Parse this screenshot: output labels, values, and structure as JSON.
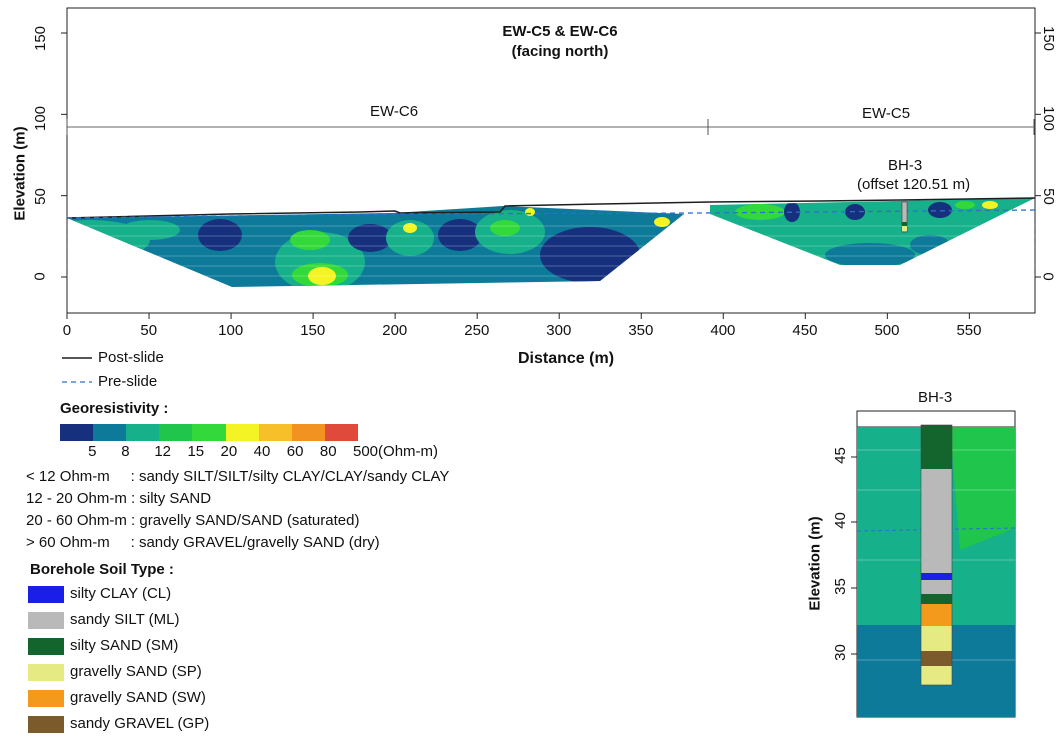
{
  "main_chart": {
    "title_line1": "EW-C5 & EW-C6",
    "title_line2": "(facing north)",
    "xlabel": "Distance (m)",
    "ylabel": "Elevation (m)",
    "section_labels": [
      "EW-C6",
      "EW-C5"
    ],
    "borehole_label": "BH-3",
    "borehole_offset": "(offset 120.51 m)",
    "x_ticks": [
      "0",
      "50",
      "100",
      "150",
      "200",
      "250",
      "300",
      "350",
      "400",
      "450",
      "500",
      "550"
    ],
    "y_ticks": [
      "0",
      "50",
      "100",
      "150"
    ]
  },
  "legend": {
    "post_slide": "Post-slide",
    "pre_slide": "Pre-slide",
    "georesistivity_title": "Georesistivity :",
    "scale_labels": [
      "5",
      "8",
      "12",
      "15",
      "20",
      "40",
      "60",
      "80",
      "500(Ohm-m)"
    ],
    "scale_colors": [
      "#16307e",
      "#0d7a99",
      "#16b08a",
      "#1fc64b",
      "#33d83a",
      "#f4f425",
      "#f7bf29",
      "#f29220",
      "#e04a3b"
    ],
    "interpretations": [
      "< 12 Ohm-m     : sandy SILT/SILT/silty CLAY/CLAY/sandy CLAY",
      "12 - 20 Ohm-m : silty SAND",
      "20 - 60 Ohm-m : gravelly SAND/SAND (saturated)",
      "> 60 Ohm-m     : sandy GRAVEL/gravelly SAND (dry)"
    ],
    "soil_title": "Borehole Soil Type :",
    "soil_types": [
      {
        "label": "silty CLAY (CL)",
        "color": "#1b1ee8"
      },
      {
        "label": "sandy SILT (ML)",
        "color": "#b9b9b9"
      },
      {
        "label": "silty SAND (SM)",
        "color": "#13652d"
      },
      {
        "label": "gravelly SAND (SP)",
        "color": "#e6ea83"
      },
      {
        "label": "gravelly SAND (SW)",
        "color": "#f39a1d"
      },
      {
        "label": "sandy GRAVEL (GP)",
        "color": "#7b5a2b"
      }
    ]
  },
  "inset": {
    "title": "BH-3",
    "ylabel": "Elevation (m)",
    "y_ticks": [
      "30",
      "35",
      "40",
      "45"
    ]
  },
  "chart_data": {
    "type": "heatmap",
    "title": "EW-C5 & EW-C6 (facing north)",
    "xlabel": "Distance (m)",
    "ylabel": "Elevation (m)",
    "xlim": [
      0,
      590
    ],
    "ylim": [
      -25,
      165
    ],
    "sections": [
      {
        "name": "EW-C6",
        "x_start": 0,
        "x_end": 392
      },
      {
        "name": "EW-C5",
        "x_start": 392,
        "x_end": 590
      }
    ],
    "post_slide_surface": [
      [
        0,
        36
      ],
      [
        100,
        37
      ],
      [
        170,
        40
      ],
      [
        190,
        39
      ],
      [
        260,
        41
      ],
      [
        300,
        44
      ],
      [
        400,
        45
      ],
      [
        500,
        46
      ],
      [
        590,
        48
      ]
    ],
    "pre_slide_surface": [
      [
        0,
        36
      ],
      [
        200,
        37
      ],
      [
        300,
        38
      ],
      [
        400,
        40
      ],
      [
        500,
        40
      ],
      [
        590,
        41
      ]
    ],
    "borehole": {
      "name": "BH-3",
      "x": 512,
      "offset_m": 120.51
    }
  }
}
